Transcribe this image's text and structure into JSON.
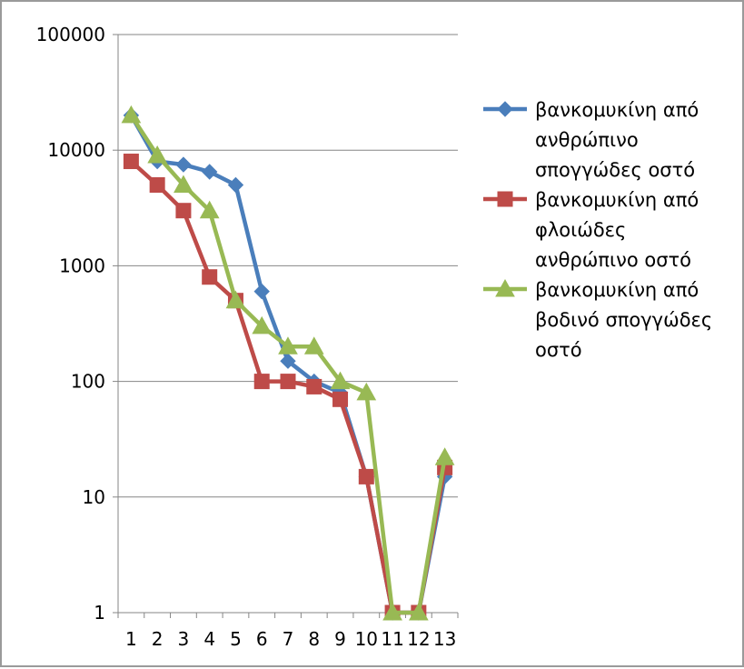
{
  "chart_data": {
    "type": "line",
    "title": "",
    "xlabel": "",
    "ylabel": "",
    "yscale": "log",
    "ylim": [
      1,
      100000
    ],
    "yticks": [
      1,
      10,
      100,
      1000,
      10000,
      100000
    ],
    "ytick_labels": [
      "1",
      "10",
      "100",
      "1000",
      "10000",
      "100000"
    ],
    "categories": [
      "1",
      "2",
      "3",
      "4",
      "5",
      "6",
      "7",
      "8",
      "9",
      "10",
      "11",
      "12",
      "13"
    ],
    "grid": true,
    "legend_position": "right",
    "series": [
      {
        "name_lines": [
          "βανκομυκίνη από",
          "ανθρώπινο",
          "σπογγώδες οστό"
        ],
        "color": "#4a7ebb",
        "marker": "diamond",
        "values": [
          20000,
          8000,
          7500,
          6500,
          5000,
          600,
          150,
          100,
          80,
          15,
          1,
          1,
          15
        ]
      },
      {
        "name_lines": [
          "βανκομυκίνη από",
          "φλοιώδες",
          "ανθρώπινο οστό"
        ],
        "color": "#be4b48",
        "marker": "square",
        "values": [
          8000,
          5000,
          3000,
          800,
          500,
          100,
          100,
          90,
          70,
          15,
          1,
          1,
          18
        ]
      },
      {
        "name_lines": [
          "βανκομυκίνη από",
          "βοδινό σπογγώδες",
          "οστό"
        ],
        "color": "#98b954",
        "marker": "triangle",
        "values": [
          20000,
          9000,
          5000,
          3000,
          500,
          300,
          200,
          200,
          100,
          80,
          1,
          1,
          22
        ]
      }
    ]
  }
}
